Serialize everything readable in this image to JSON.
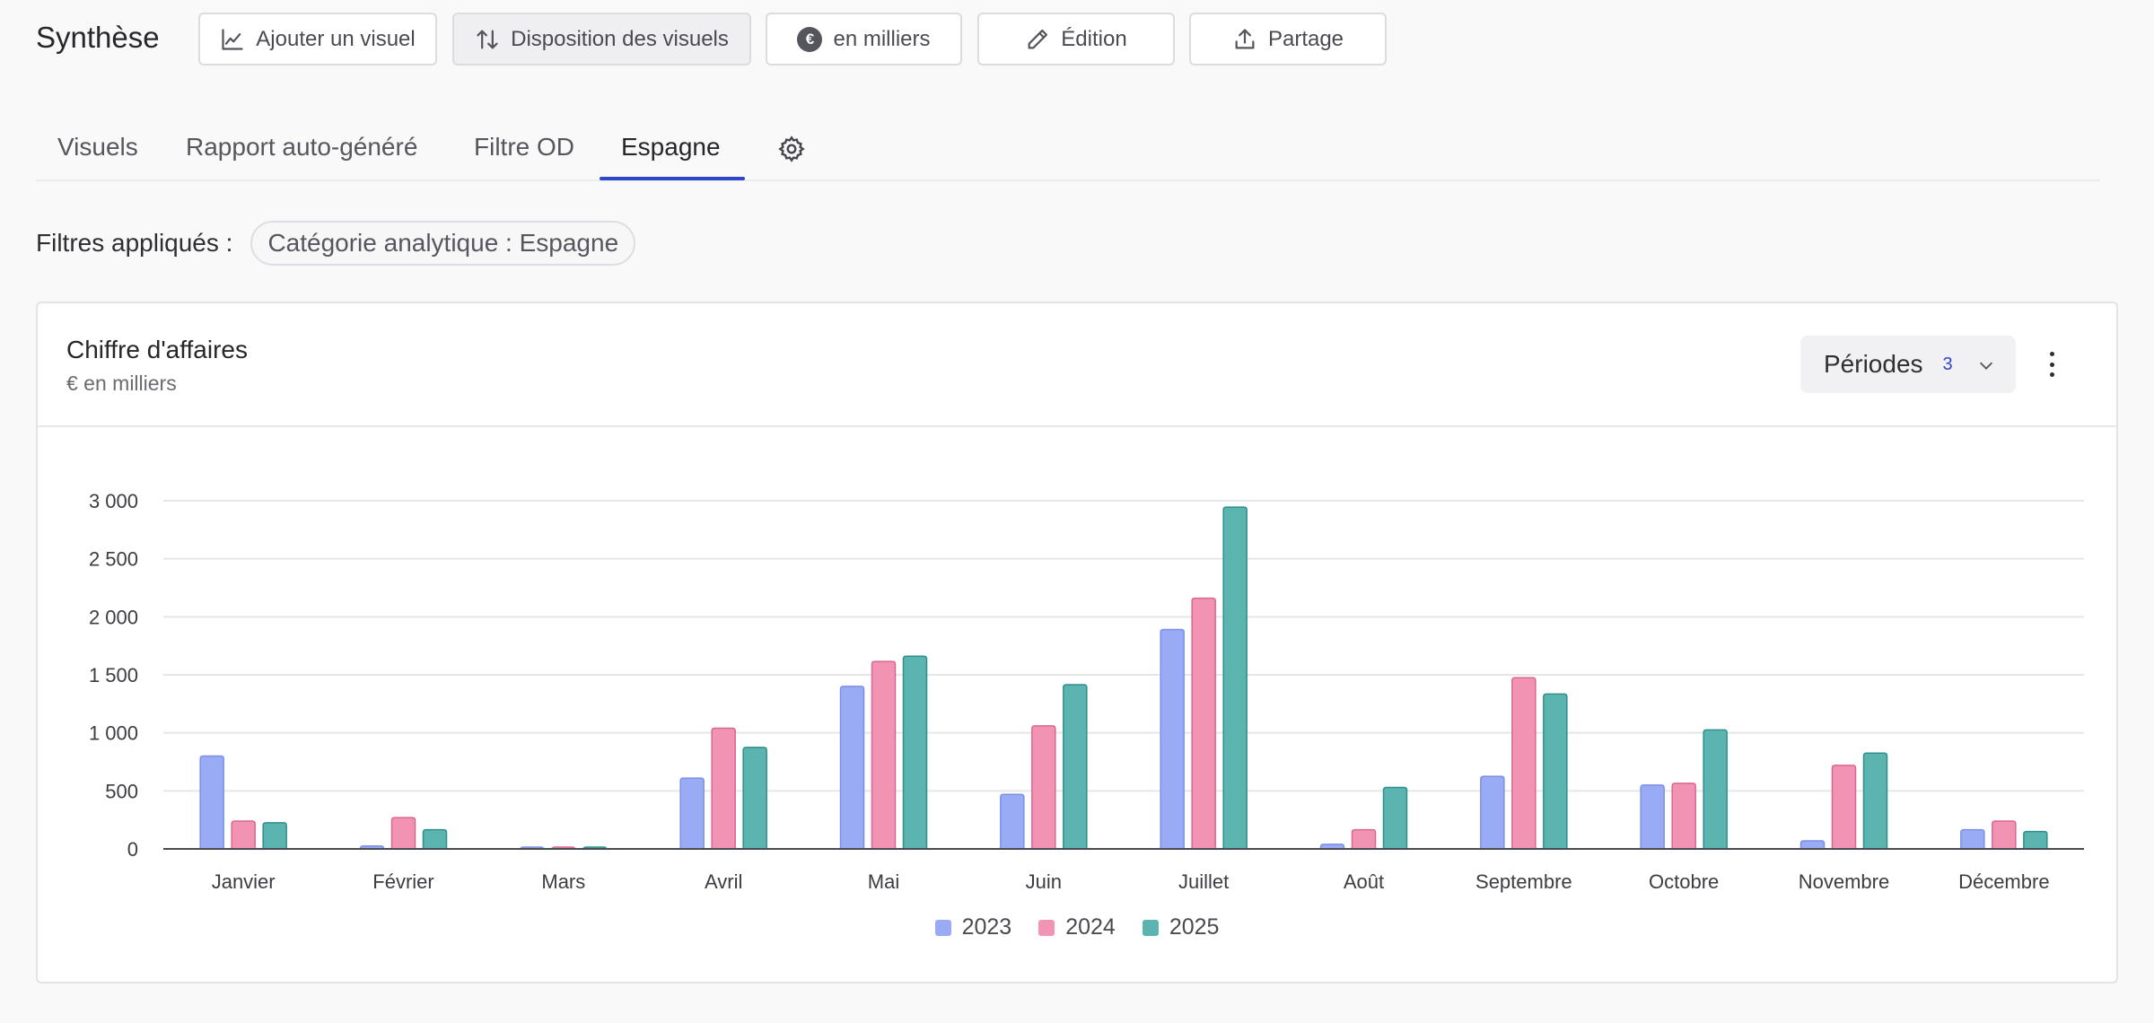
{
  "toolbar": {
    "title": "Synthèse",
    "add_visual_label": "Ajouter un visuel",
    "layout_label": "Disposition des visuels",
    "units_label": "en milliers",
    "units_icon": "€",
    "edit_label": "Édition",
    "share_label": "Partage"
  },
  "tabs": [
    {
      "label": "Visuels"
    },
    {
      "label": "Rapport auto-généré"
    },
    {
      "label": "Filtre OD"
    },
    {
      "label": "Espagne"
    }
  ],
  "filters": {
    "label": "Filtres appliqués :",
    "chips": [
      {
        "label": "Catégorie analytique : Espagne"
      }
    ]
  },
  "card": {
    "title": "Chiffre d'affaires",
    "subtitle": "€ en milliers",
    "periods_label": "Périodes",
    "periods_count": "3"
  },
  "chart_data": {
    "type": "bar",
    "title": "Chiffre d'affaires",
    "subtitle": "€ en milliers",
    "categories": [
      "Janvier",
      "Février",
      "Mars",
      "Avril",
      "Mai",
      "Juin",
      "Juillet",
      "Août",
      "Septembre",
      "Octobre",
      "Novembre",
      "Décembre"
    ],
    "series": [
      {
        "name": "2023",
        "color": "#9aabf5",
        "stroke": "#7b8fe6",
        "values": [
          800,
          25,
          5,
          610,
          1400,
          470,
          1890,
          40,
          625,
          550,
          70,
          165
        ]
      },
      {
        "name": "2024",
        "color": "#f293b4",
        "stroke": "#d9668f",
        "values": [
          240,
          270,
          10,
          1040,
          1615,
          1060,
          2160,
          165,
          1475,
          565,
          720,
          240
        ]
      },
      {
        "name": "2025",
        "color": "#5cb4b0",
        "stroke": "#2f8f8b",
        "values": [
          225,
          165,
          5,
          875,
          1660,
          1415,
          2945,
          530,
          1335,
          1025,
          825,
          150
        ]
      }
    ],
    "yticks": [
      0,
      500,
      1000,
      1500,
      2000,
      2500,
      3000
    ],
    "ytick_labels": [
      "0",
      "500",
      "1 000",
      "1 500",
      "2 000",
      "2 500",
      "3 000"
    ],
    "ylim": [
      0,
      3000
    ],
    "grid": true,
    "legend": "bottom-center"
  }
}
